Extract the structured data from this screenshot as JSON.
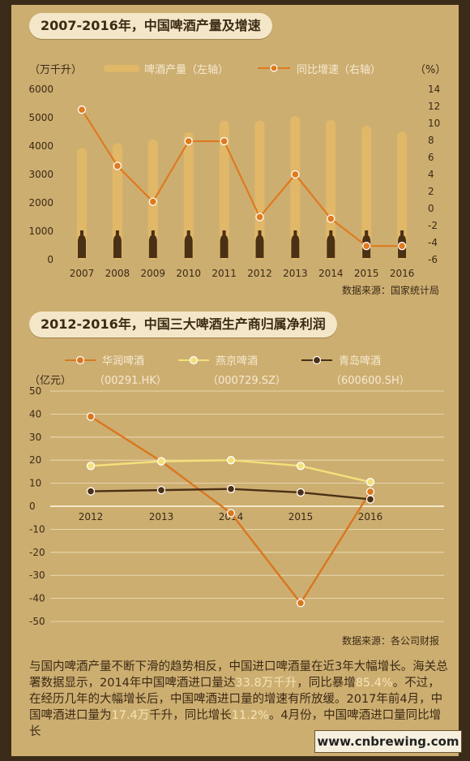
{
  "source_watermark": "www.cnbrewing.com",
  "chart1": {
    "title": "2007-2016年，中国啤酒产量及增速",
    "left_unit": "（万千升）",
    "right_unit": "（%）",
    "legend_bar": "啤酒产量（左轴）",
    "legend_line": "同比增速（右轴）",
    "source": "数据来源：国家统计局"
  },
  "chart2": {
    "title": "2012-2016年，中国三大啤酒生产商归属净利润",
    "unit": "（亿元）",
    "source": "数据来源：各公司财报",
    "legend": [
      {
        "name": "华润啤酒",
        "code": "（00291.HK）"
      },
      {
        "name": "燕京啤酒",
        "code": "（000729.SZ）"
      },
      {
        "name": "青岛啤酒",
        "code": "（600600.SH）"
      }
    ]
  },
  "paragraph": {
    "t1": "与国内啤酒产量不断下滑的趋势相反，中国进口啤酒量在近3年大幅增长。海关总署数据显示，2014年中国啤酒进口量达",
    "h1": "33.8万千升",
    "t2": "，同比暴增",
    "h2": "85.4%",
    "t3": "。不过，在经历几年的大幅增长后，中国啤酒进口量的增速有所放缓。2017年前4月，中国啤酒进口量为",
    "h3": "17.4万",
    "t4": "千升，同比增长",
    "h4": "11.2%",
    "t5": "。4月份，中国啤酒进口量同比增长"
  },
  "colors": {
    "bar": "#e0b868",
    "line1": "#e07a1e",
    "huarun": "#d9771e",
    "yanjing": "#f3e07a",
    "tsingtao": "#4a3015",
    "axis_text": "#3a2a14"
  },
  "chart_data": [
    {
      "type": "bar",
      "title": "2007-2016年，中国啤酒产量及增速",
      "categories": [
        "2007",
        "2008",
        "2009",
        "2010",
        "2011",
        "2012",
        "2013",
        "2014",
        "2015",
        "2016"
      ],
      "series": [
        {
          "name": "啤酒产量（左轴）",
          "type": "bar",
          "axis": "left",
          "values": [
            3931,
            4103,
            4236,
            4483,
            4898,
            4902,
            5062,
            4922,
            4715,
            4506
          ]
        },
        {
          "name": "同比增速（右轴）",
          "type": "line",
          "axis": "right",
          "values": [
            11.6,
            5.0,
            0.8,
            7.9,
            7.9,
            -1.0,
            4.0,
            -1.2,
            -4.4,
            -4.4
          ]
        }
      ],
      "ylim_left": [
        0,
        6000
      ],
      "yticks_left": [
        "0",
        "1000",
        "2000",
        "3000",
        "4000",
        "5000",
        "6000"
      ],
      "ylim_right": [
        -6,
        14
      ],
      "yticks_right": [
        "-6",
        "-4",
        "-2",
        "0",
        "2",
        "4",
        "6",
        "8",
        "10",
        "12",
        "14"
      ],
      "grid": false,
      "legend_position": "top"
    },
    {
      "type": "line",
      "title": "2012-2016年，中国三大啤酒生产商归属净利润",
      "categories": [
        "2012",
        "2013",
        "2014",
        "2015",
        "2016"
      ],
      "series": [
        {
          "name": "华润啤酒",
          "values": [
            38.9,
            19.5,
            -3.0,
            -42.0,
            6.3
          ]
        },
        {
          "name": "燕京啤酒",
          "values": [
            17.5,
            19.5,
            20.0,
            17.5,
            10.5
          ]
        },
        {
          "name": "青岛啤酒",
          "values": [
            6.5,
            7.0,
            7.5,
            6.0,
            3.0
          ]
        }
      ],
      "ylim": [
        -50,
        50
      ],
      "yticks": [
        "-50",
        "-40",
        "-30",
        "-20",
        "-10",
        "0",
        "10",
        "20",
        "30",
        "40",
        "50"
      ],
      "grid": true,
      "legend_position": "top"
    }
  ]
}
